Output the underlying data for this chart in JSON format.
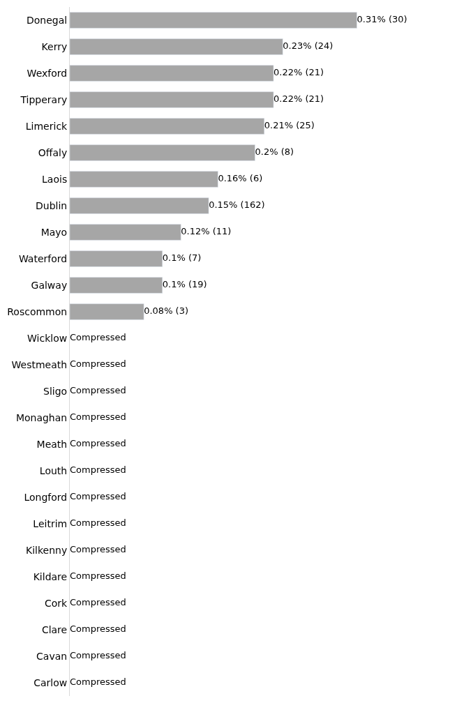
{
  "chart_data": {
    "type": "bar",
    "orientation": "horizontal",
    "tick_labels": "y",
    "categories": [
      "Donegal",
      "Kerry",
      "Wexford",
      "Tipperary",
      "Limerick",
      "Offaly",
      "Laois",
      "Dublin",
      "Mayo",
      "Waterford",
      "Galway",
      "Roscommon",
      "Wicklow",
      "Westmeath",
      "Sligo",
      "Monaghan",
      "Meath",
      "Louth",
      "Longford",
      "Leitrim",
      "Kilkenny",
      "Kildare",
      "Cork",
      "Clare",
      "Cavan",
      "Carlow"
    ],
    "values": [
      0.31,
      0.23,
      0.22,
      0.22,
      0.21,
      0.2,
      0.16,
      0.15,
      0.12,
      0.1,
      0.1,
      0.08,
      null,
      null,
      null,
      null,
      null,
      null,
      null,
      null,
      null,
      null,
      null,
      null,
      null,
      null
    ],
    "value_labels": [
      "0.31% (30)",
      "0.23% (24)",
      "0.22% (21)",
      "0.22% (21)",
      "0.21% (25)",
      "0.2% (8)",
      "0.16% (6)",
      "0.15% (162)",
      "0.12% (11)",
      "0.1% (7)",
      "0.1% (19)",
      "0.08% (3)",
      "Compressed",
      "Compressed",
      "Compressed",
      "Compressed",
      "Compressed",
      "Compressed",
      "Compressed",
      "Compressed",
      "Compressed",
      "Compressed",
      "Compressed",
      "Compressed",
      "Compressed",
      "Compressed"
    ],
    "color": "#a6a6a6"
  }
}
